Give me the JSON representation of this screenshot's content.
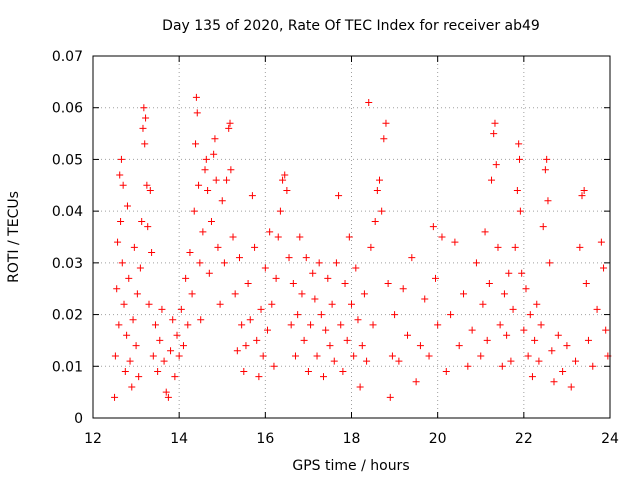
{
  "chart_data": {
    "type": "scatter",
    "title": "Day 135 of 2020, Rate Of TEC Index for receiver ab49",
    "xlabel": "GPS time / hours",
    "ylabel": "ROTI / TECUs",
    "xlim": [
      12,
      24
    ],
    "ylim": [
      0,
      0.07
    ],
    "xticks": [
      "12",
      "14",
      "16",
      "18",
      "20",
      "22",
      "24"
    ],
    "yticks": [
      "0",
      "0.01",
      "0.02",
      "0.03",
      "0.04",
      "0.05",
      "0.06",
      "0.07"
    ],
    "grid": true,
    "marker": "plus",
    "color": "#ff0000",
    "series": [
      {
        "points": [
          [
            12.5,
            0.004
          ],
          [
            12.52,
            0.012
          ],
          [
            12.55,
            0.025
          ],
          [
            12.57,
            0.034
          ],
          [
            12.6,
            0.018
          ],
          [
            12.62,
            0.047
          ],
          [
            12.64,
            0.038
          ],
          [
            12.66,
            0.05
          ],
          [
            12.68,
            0.03
          ],
          [
            12.7,
            0.045
          ],
          [
            12.72,
            0.022
          ],
          [
            12.75,
            0.009
          ],
          [
            12.78,
            0.016
          ],
          [
            12.8,
            0.041
          ],
          [
            12.83,
            0.027
          ],
          [
            12.86,
            0.011
          ],
          [
            12.9,
            0.006
          ],
          [
            12.93,
            0.019
          ],
          [
            12.96,
            0.033
          ],
          [
            13.0,
            0.014
          ],
          [
            13.03,
            0.024
          ],
          [
            13.06,
            0.008
          ],
          [
            13.1,
            0.029
          ],
          [
            13.13,
            0.038
          ],
          [
            13.16,
            0.056
          ],
          [
            13.18,
            0.06
          ],
          [
            13.2,
            0.053
          ],
          [
            13.22,
            0.058
          ],
          [
            13.25,
            0.045
          ],
          [
            13.27,
            0.037
          ],
          [
            13.3,
            0.022
          ],
          [
            13.33,
            0.044
          ],
          [
            13.36,
            0.032
          ],
          [
            13.4,
            0.012
          ],
          [
            13.45,
            0.018
          ],
          [
            13.5,
            0.009
          ],
          [
            13.55,
            0.015
          ],
          [
            13.6,
            0.021
          ],
          [
            13.65,
            0.011
          ],
          [
            13.7,
            0.005
          ],
          [
            13.75,
            0.004
          ],
          [
            13.8,
            0.013
          ],
          [
            13.85,
            0.019
          ],
          [
            13.9,
            0.008
          ],
          [
            13.95,
            0.016
          ],
          [
            14.0,
            0.012
          ],
          [
            14.05,
            0.021
          ],
          [
            14.1,
            0.014
          ],
          [
            14.15,
            0.027
          ],
          [
            14.2,
            0.018
          ],
          [
            14.25,
            0.032
          ],
          [
            14.3,
            0.024
          ],
          [
            14.35,
            0.04
          ],
          [
            14.38,
            0.053
          ],
          [
            14.4,
            0.062
          ],
          [
            14.42,
            0.059
          ],
          [
            14.45,
            0.045
          ],
          [
            14.48,
            0.03
          ],
          [
            14.5,
            0.019
          ],
          [
            14.55,
            0.036
          ],
          [
            14.6,
            0.048
          ],
          [
            14.63,
            0.05
          ],
          [
            14.66,
            0.044
          ],
          [
            14.7,
            0.028
          ],
          [
            14.75,
            0.038
          ],
          [
            14.8,
            0.051
          ],
          [
            14.83,
            0.054
          ],
          [
            14.86,
            0.046
          ],
          [
            14.9,
            0.033
          ],
          [
            14.95,
            0.022
          ],
          [
            15.0,
            0.042
          ],
          [
            15.05,
            0.03
          ],
          [
            15.1,
            0.046
          ],
          [
            15.15,
            0.056
          ],
          [
            15.18,
            0.057
          ],
          [
            15.2,
            0.048
          ],
          [
            15.25,
            0.035
          ],
          [
            15.3,
            0.024
          ],
          [
            15.35,
            0.013
          ],
          [
            15.4,
            0.031
          ],
          [
            15.45,
            0.018
          ],
          [
            15.5,
            0.009
          ],
          [
            15.55,
            0.014
          ],
          [
            15.6,
            0.026
          ],
          [
            15.65,
            0.019
          ],
          [
            15.7,
            0.043
          ],
          [
            15.75,
            0.033
          ],
          [
            15.8,
            0.015
          ],
          [
            15.85,
            0.008
          ],
          [
            15.9,
            0.021
          ],
          [
            15.95,
            0.012
          ],
          [
            16.0,
            0.029
          ],
          [
            16.05,
            0.017
          ],
          [
            16.1,
            0.036
          ],
          [
            16.15,
            0.022
          ],
          [
            16.2,
            0.01
          ],
          [
            16.25,
            0.027
          ],
          [
            16.3,
            0.035
          ],
          [
            16.35,
            0.04
          ],
          [
            16.4,
            0.046
          ],
          [
            16.45,
            0.047
          ],
          [
            16.5,
            0.044
          ],
          [
            16.55,
            0.031
          ],
          [
            16.6,
            0.018
          ],
          [
            16.65,
            0.026
          ],
          [
            16.7,
            0.012
          ],
          [
            16.75,
            0.02
          ],
          [
            16.8,
            0.035
          ],
          [
            16.85,
            0.024
          ],
          [
            16.9,
            0.015
          ],
          [
            16.95,
            0.031
          ],
          [
            17.0,
            0.009
          ],
          [
            17.05,
            0.018
          ],
          [
            17.1,
            0.028
          ],
          [
            17.15,
            0.023
          ],
          [
            17.2,
            0.012
          ],
          [
            17.25,
            0.03
          ],
          [
            17.3,
            0.02
          ],
          [
            17.35,
            0.008
          ],
          [
            17.4,
            0.017
          ],
          [
            17.45,
            0.027
          ],
          [
            17.5,
            0.014
          ],
          [
            17.55,
            0.022
          ],
          [
            17.6,
            0.011
          ],
          [
            17.65,
            0.03
          ],
          [
            17.7,
            0.043
          ],
          [
            17.75,
            0.018
          ],
          [
            17.8,
            0.009
          ],
          [
            17.85,
            0.026
          ],
          [
            17.9,
            0.015
          ],
          [
            17.95,
            0.035
          ],
          [
            18.0,
            0.022
          ],
          [
            18.05,
            0.012
          ],
          [
            18.1,
            0.029
          ],
          [
            18.15,
            0.019
          ],
          [
            18.2,
            0.006
          ],
          [
            18.25,
            0.014
          ],
          [
            18.3,
            0.024
          ],
          [
            18.35,
            0.011
          ],
          [
            18.4,
            0.061
          ],
          [
            18.45,
            0.033
          ],
          [
            18.5,
            0.018
          ],
          [
            18.55,
            0.038
          ],
          [
            18.6,
            0.044
          ],
          [
            18.65,
            0.046
          ],
          [
            18.7,
            0.04
          ],
          [
            18.75,
            0.054
          ],
          [
            18.8,
            0.057
          ],
          [
            18.85,
            0.026
          ],
          [
            18.9,
            0.004
          ],
          [
            18.95,
            0.012
          ],
          [
            19.0,
            0.02
          ],
          [
            19.1,
            0.011
          ],
          [
            19.2,
            0.025
          ],
          [
            19.3,
            0.016
          ],
          [
            19.4,
            0.031
          ],
          [
            19.5,
            0.007
          ],
          [
            19.6,
            0.014
          ],
          [
            19.7,
            0.023
          ],
          [
            19.8,
            0.012
          ],
          [
            19.9,
            0.037
          ],
          [
            19.95,
            0.027
          ],
          [
            20.0,
            0.018
          ],
          [
            20.1,
            0.035
          ],
          [
            20.2,
            0.009
          ],
          [
            20.3,
            0.02
          ],
          [
            20.4,
            0.034
          ],
          [
            20.5,
            0.014
          ],
          [
            20.6,
            0.024
          ],
          [
            20.7,
            0.01
          ],
          [
            20.8,
            0.017
          ],
          [
            20.9,
            0.03
          ],
          [
            21.0,
            0.012
          ],
          [
            21.05,
            0.022
          ],
          [
            21.1,
            0.036
          ],
          [
            21.15,
            0.015
          ],
          [
            21.2,
            0.026
          ],
          [
            21.25,
            0.046
          ],
          [
            21.3,
            0.055
          ],
          [
            21.33,
            0.057
          ],
          [
            21.36,
            0.049
          ],
          [
            21.4,
            0.033
          ],
          [
            21.45,
            0.018
          ],
          [
            21.5,
            0.01
          ],
          [
            21.55,
            0.024
          ],
          [
            21.6,
            0.016
          ],
          [
            21.65,
            0.028
          ],
          [
            21.7,
            0.011
          ],
          [
            21.75,
            0.021
          ],
          [
            21.8,
            0.033
          ],
          [
            21.85,
            0.044
          ],
          [
            21.88,
            0.053
          ],
          [
            21.9,
            0.05
          ],
          [
            21.92,
            0.04
          ],
          [
            21.95,
            0.028
          ],
          [
            22.0,
            0.017
          ],
          [
            22.05,
            0.025
          ],
          [
            22.1,
            0.012
          ],
          [
            22.15,
            0.02
          ],
          [
            22.2,
            0.008
          ],
          [
            22.25,
            0.015
          ],
          [
            22.3,
            0.022
          ],
          [
            22.35,
            0.011
          ],
          [
            22.4,
            0.018
          ],
          [
            22.45,
            0.037
          ],
          [
            22.5,
            0.048
          ],
          [
            22.53,
            0.05
          ],
          [
            22.56,
            0.042
          ],
          [
            22.6,
            0.03
          ],
          [
            22.65,
            0.013
          ],
          [
            22.7,
            0.007
          ],
          [
            22.8,
            0.016
          ],
          [
            22.9,
            0.009
          ],
          [
            23.0,
            0.014
          ],
          [
            23.1,
            0.006
          ],
          [
            23.2,
            0.011
          ],
          [
            23.3,
            0.033
          ],
          [
            23.35,
            0.043
          ],
          [
            23.4,
            0.044
          ],
          [
            23.45,
            0.026
          ],
          [
            23.5,
            0.015
          ],
          [
            23.6,
            0.01
          ],
          [
            23.7,
            0.021
          ],
          [
            23.8,
            0.034
          ],
          [
            23.85,
            0.029
          ],
          [
            23.9,
            0.017
          ],
          [
            23.95,
            0.012
          ]
        ]
      }
    ]
  }
}
